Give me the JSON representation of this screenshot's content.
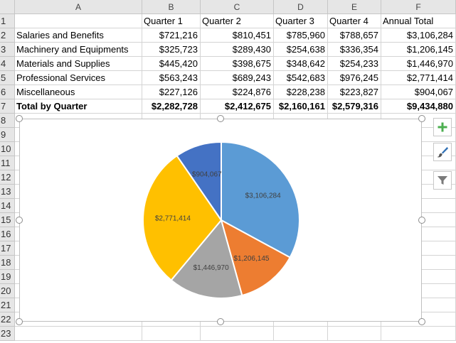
{
  "sheet": {
    "columns": [
      "A",
      "B",
      "C",
      "D",
      "E",
      "F"
    ],
    "rows": [
      "1",
      "2",
      "3",
      "4",
      "5",
      "6",
      "7",
      "8",
      "9",
      "10",
      "11",
      "12",
      "13",
      "14",
      "15",
      "16",
      "17",
      "18",
      "19",
      "20",
      "21",
      "22",
      "23"
    ],
    "header_row": [
      "",
      "Quarter 1",
      "Quarter 2",
      "Quarter 3",
      "Quarter 4",
      "Annual Total"
    ],
    "data_rows": [
      [
        "Salaries and Benefits",
        "$721,216",
        "$810,451",
        "$785,960",
        "$788,657",
        "$3,106,284"
      ],
      [
        "Machinery and Equipments",
        "$325,723",
        "$289,430",
        "$254,638",
        "$336,354",
        "$1,206,145"
      ],
      [
        "Materials and Supplies",
        "$445,420",
        "$398,675",
        "$348,642",
        "$254,233",
        "$1,446,970"
      ],
      [
        "Professional Services",
        "$563,243",
        "$689,243",
        "$542,683",
        "$976,245",
        "$2,771,414"
      ],
      [
        "Miscellaneous",
        "$227,126",
        "$224,876",
        "$228,238",
        "$223,827",
        "$904,067"
      ]
    ],
    "total_row": [
      "Total by Quarter",
      "$2,282,728",
      "$2,412,675",
      "$2,160,161",
      "$2,579,316",
      "$9,434,880"
    ]
  },
  "chart_data": {
    "type": "pie",
    "title": "",
    "categories": [
      "Salaries and Benefits",
      "Machinery and Equipments",
      "Materials and Supplies",
      "Professional Services",
      "Miscellaneous"
    ],
    "values": [
      3106284,
      1206145,
      1446970,
      2771414,
      904067
    ],
    "labels": [
      "$3,106,284",
      "$1,206,145",
      "$1,446,970",
      "$2,771,414",
      "$904,067"
    ],
    "colors": [
      "#5b9bd5",
      "#ed7d31",
      "#a5a5a5",
      "#ffc000",
      "#4472c4"
    ],
    "legend": "none"
  },
  "chart_tools": {
    "icons": [
      "plus-icon",
      "brush-icon",
      "filter-icon"
    ],
    "colors": {
      "plus": "#4caf50",
      "brush": "#2f6fb4",
      "filter": "#7a7a7a"
    }
  }
}
